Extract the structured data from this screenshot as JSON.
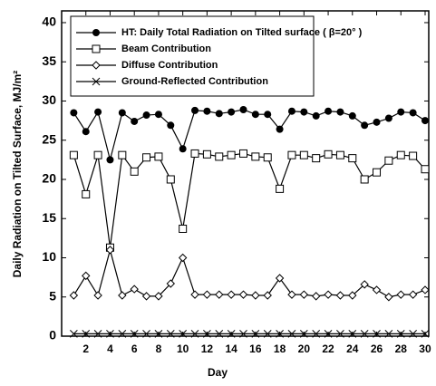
{
  "chart_data": {
    "type": "line",
    "x_label": "Day",
    "y_label": "Daily Radiation on Tilted Surface, MJ/m²",
    "x": [
      1,
      2,
      3,
      4,
      5,
      6,
      7,
      8,
      9,
      10,
      11,
      12,
      13,
      14,
      15,
      16,
      17,
      18,
      19,
      20,
      21,
      22,
      23,
      24,
      25,
      26,
      27,
      28,
      29,
      30
    ],
    "series": [
      {
        "name": "HT: Daily Total Radiation on Tilted surface ( β=20° )",
        "color": "#000000",
        "marker": "filled-circle",
        "values": [
          28.5,
          26.1,
          28.6,
          22.5,
          28.5,
          27.4,
          28.2,
          28.3,
          26.9,
          23.9,
          28.8,
          28.7,
          28.4,
          28.6,
          28.9,
          28.3,
          28.3,
          26.4,
          28.7,
          28.6,
          28.1,
          28.7,
          28.6,
          28.1,
          26.9,
          27.3,
          27.8,
          28.6,
          28.5,
          27.5
        ]
      },
      {
        "name": "Beam Contribution",
        "color": "#000000",
        "marker": "open-square",
        "values": [
          23.1,
          18.1,
          23.1,
          11.3,
          23.1,
          21.0,
          22.8,
          22.9,
          20.0,
          13.7,
          23.3,
          23.2,
          22.9,
          23.1,
          23.3,
          22.9,
          22.8,
          18.8,
          23.1,
          23.1,
          22.7,
          23.2,
          23.1,
          22.7,
          20.0,
          20.9,
          22.4,
          23.1,
          23.0,
          21.3
        ]
      },
      {
        "name": "Diffuse Contribution",
        "color": "#000000",
        "marker": "open-diamond",
        "values": [
          5.2,
          7.7,
          5.2,
          11.0,
          5.2,
          6.0,
          5.1,
          5.1,
          6.7,
          10.0,
          5.3,
          5.3,
          5.3,
          5.3,
          5.3,
          5.2,
          5.2,
          7.4,
          5.3,
          5.3,
          5.1,
          5.3,
          5.2,
          5.2,
          6.6,
          5.9,
          5.0,
          5.3,
          5.3,
          5.9
        ]
      },
      {
        "name": "Ground-Reflected Contribution",
        "color": "#000000",
        "marker": "cross",
        "values": [
          0.3,
          0.3,
          0.3,
          0.3,
          0.3,
          0.3,
          0.3,
          0.3,
          0.3,
          0.3,
          0.3,
          0.3,
          0.3,
          0.3,
          0.3,
          0.3,
          0.3,
          0.3,
          0.3,
          0.3,
          0.3,
          0.3,
          0.3,
          0.3,
          0.3,
          0.3,
          0.3,
          0.3,
          0.3,
          0.3
        ]
      }
    ],
    "xlim": [
      0,
      30.3
    ],
    "xticks": [
      2,
      4,
      6,
      8,
      10,
      12,
      14,
      16,
      18,
      20,
      22,
      24,
      26,
      28,
      30
    ],
    "ylim": [
      0,
      41.5
    ],
    "yticks": [
      0,
      5,
      10,
      15,
      20,
      25,
      30,
      35,
      40
    ],
    "grid": false,
    "legend": "upper-left"
  }
}
